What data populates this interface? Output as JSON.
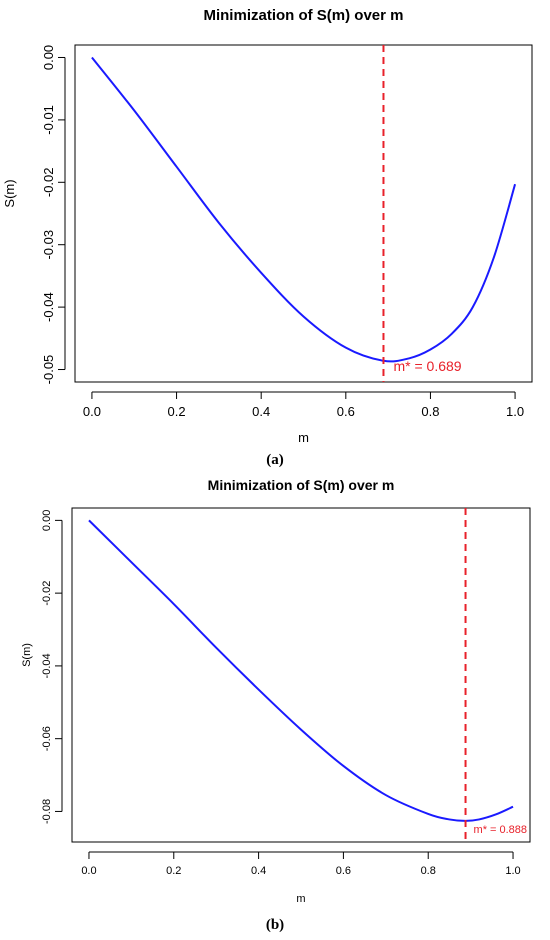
{
  "chart_data": [
    {
      "type": "line",
      "panel": "(a)",
      "title": "Minimization of S(m) over m",
      "xlabel": "m",
      "ylabel": "S(m)",
      "xlim": [
        0,
        1
      ],
      "ylim": [
        -0.05,
        0
      ],
      "xticks": [
        "0.0",
        "0.2",
        "0.4",
        "0.6",
        "0.8",
        "1.0"
      ],
      "yticks": [
        "0.00",
        "-0.01",
        "-0.02",
        "-0.03",
        "-0.04",
        "-0.05"
      ],
      "series": [
        {
          "color": "#1a1aff",
          "x": [
            0.0,
            0.1,
            0.2,
            0.3,
            0.4,
            0.5,
            0.6,
            0.689,
            0.75,
            0.8,
            0.85,
            0.9,
            0.95,
            1.0
          ],
          "y": [
            0.0,
            -0.0085,
            -0.0175,
            -0.0265,
            -0.0345,
            -0.0415,
            -0.0465,
            -0.0486,
            -0.0482,
            -0.0468,
            -0.0443,
            -0.04,
            -0.032,
            -0.0203
          ]
        }
      ],
      "vline": {
        "x": 0.689,
        "color": "#e8212a"
      },
      "annotation": {
        "text": "m* = 0.689",
        "color": "#e8212a"
      },
      "grid": false
    },
    {
      "type": "line",
      "panel": "(b)",
      "title": "Minimization of S(m) over m",
      "xlabel": "m",
      "ylabel": "S(m)",
      "xlim": [
        0,
        1
      ],
      "ylim": [
        -0.085,
        0
      ],
      "xticks": [
        "0.0",
        "0.2",
        "0.4",
        "0.6",
        "0.8",
        "1.0"
      ],
      "yticks": [
        "0.00",
        "-0.02",
        "-0.04",
        "-0.06",
        "-0.08"
      ],
      "series": [
        {
          "color": "#1a1aff",
          "x": [
            0.0,
            0.1,
            0.2,
            0.3,
            0.4,
            0.5,
            0.6,
            0.7,
            0.8,
            0.85,
            0.888,
            0.92,
            0.96,
            1.0
          ],
          "y": [
            0.0,
            -0.0115,
            -0.023,
            -0.035,
            -0.0465,
            -0.0575,
            -0.0675,
            -0.0755,
            -0.0807,
            -0.0822,
            -0.0826,
            -0.0822,
            -0.0808,
            -0.0787
          ]
        }
      ],
      "vline": {
        "x": 0.888,
        "color": "#e8212a"
      },
      "annotation": {
        "text": "m* = 0.888",
        "color": "#e8212a"
      },
      "grid": false
    }
  ],
  "captions": [
    "(a)",
    "(b)"
  ]
}
